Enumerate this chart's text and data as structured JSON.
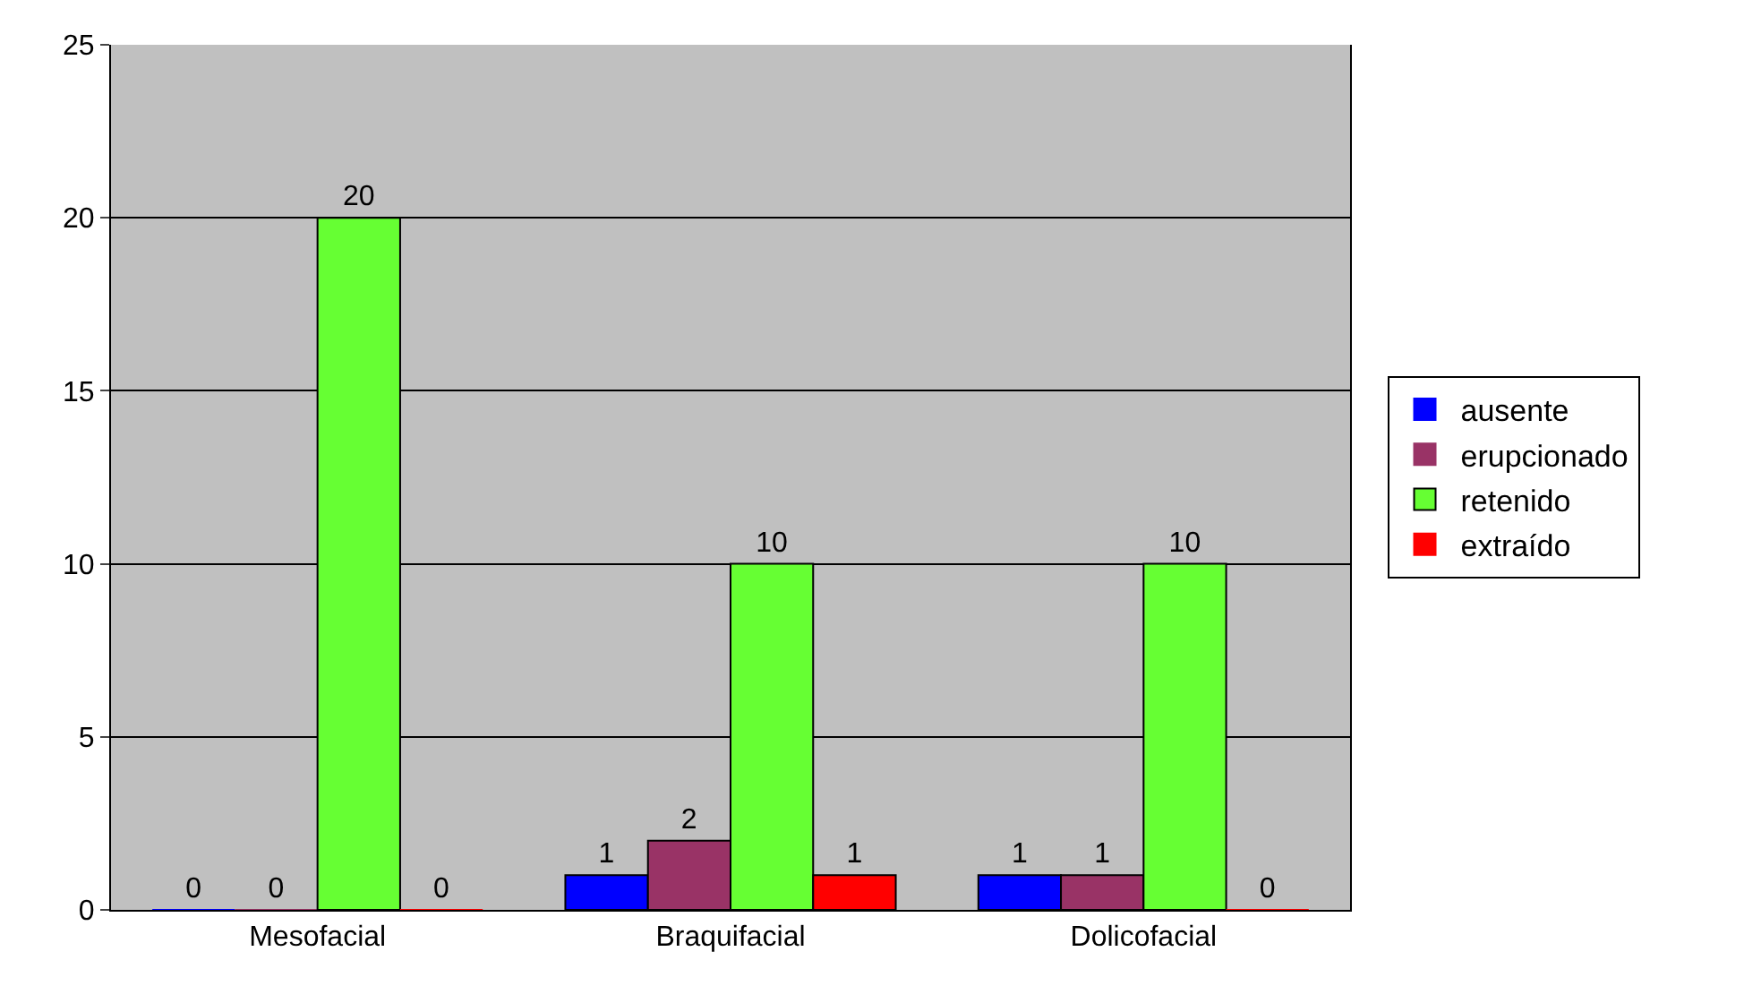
{
  "chart_data": {
    "type": "bar",
    "categories": [
      "Mesofacial",
      "Braquifacial",
      "Dolicofacial"
    ],
    "series": [
      {
        "name": "ausente",
        "color": "#0000ff",
        "values": [
          0,
          1,
          1
        ]
      },
      {
        "name": "erupcionado",
        "color": "#993366",
        "values": [
          0,
          2,
          1
        ]
      },
      {
        "name": "retenido",
        "color": "#66ff33",
        "values": [
          20,
          10,
          10
        ]
      },
      {
        "name": "extraído",
        "color": "#ff0000",
        "values": [
          0,
          1,
          0
        ]
      }
    ],
    "ylim": [
      0,
      25
    ],
    "yticks": [
      0,
      5,
      10,
      15,
      20,
      25
    ],
    "grid": "y",
    "legend": "right",
    "data_labels": true
  }
}
